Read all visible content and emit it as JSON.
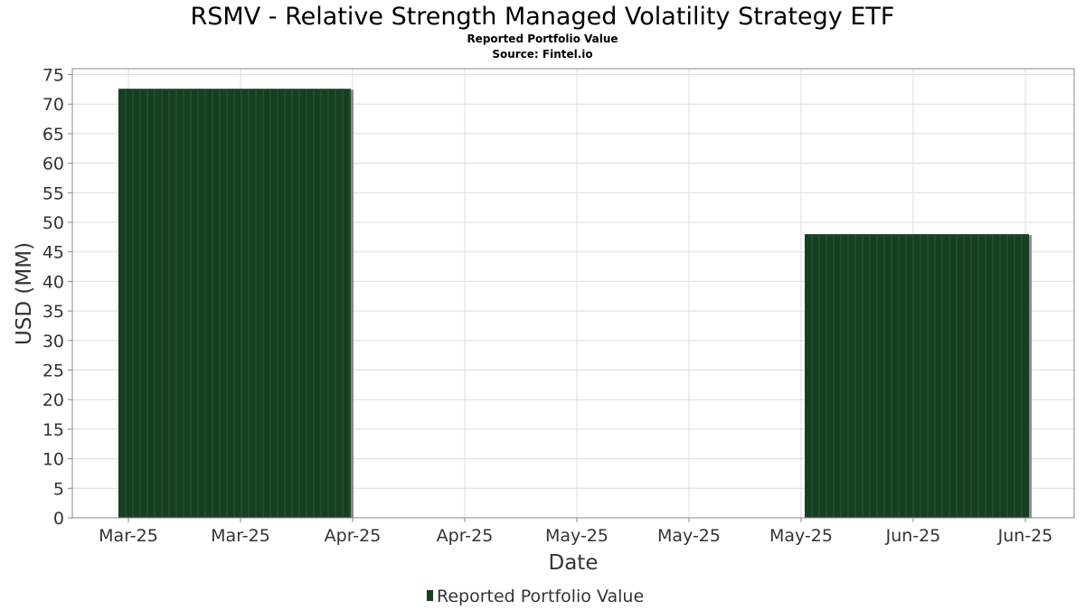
{
  "title": "RSMV - Relative Strength Managed Volatility Strategy ETF",
  "subtitle": "Reported Portfolio Value",
  "source": "Source: Fintel.io",
  "colors": {
    "bar": "#173f20",
    "bar_stripe": "#2b5a34",
    "bar_shadow": "#8a8a8a",
    "grid": "#dddddd",
    "axis": "#888888"
  },
  "chart_data": {
    "type": "bar",
    "title": "RSMV - Relative Strength Managed Volatility Strategy ETF",
    "xlabel": "Date",
    "ylabel": "USD (MM)",
    "ylim": [
      0,
      76
    ],
    "yticks": [
      0,
      5,
      10,
      15,
      20,
      25,
      30,
      35,
      40,
      45,
      50,
      55,
      60,
      65,
      70,
      75
    ],
    "x_tick_labels": [
      "Mar-25",
      "Mar-25",
      "Apr-25",
      "Apr-25",
      "May-25",
      "May-25",
      "May-25",
      "Jun-25",
      "Jun-25"
    ],
    "grid": true,
    "legend": "bottom-center",
    "series": [
      {
        "name": "Reported Portfolio Value",
        "bars": [
          {
            "start": "Mar-25",
            "end": "Apr-25",
            "value": 72.6
          },
          {
            "start": "May-25",
            "end": "Jun-25",
            "value": 48.0
          }
        ]
      }
    ]
  }
}
